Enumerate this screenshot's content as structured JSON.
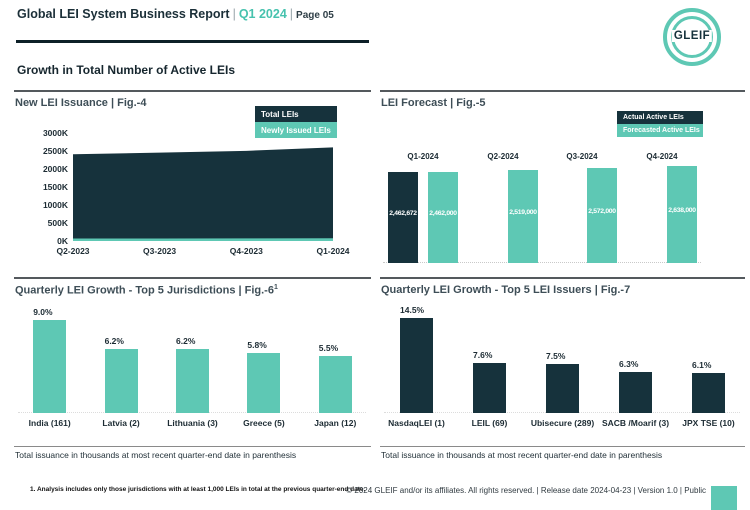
{
  "colors": {
    "teal": "#5EC8B4",
    "dark": "#16323C",
    "header_accent": "#47C2AE"
  },
  "header": {
    "title": "Global LEI System Business Report",
    "divider": "|",
    "period": "Q1 2024",
    "page_label": "Page 05",
    "logo_text": "GLEIF",
    "section_title": "Growth in Total Number of Active LEIs"
  },
  "chart_data": [
    {
      "id": "fig4",
      "type": "area",
      "title": "New LEI Issuance | Fig.-4",
      "legend": [
        {
          "label": "Total LEIs",
          "color_role": "dark"
        },
        {
          "label": "Newly Issued LEIs",
          "color_role": "teal"
        }
      ],
      "x": [
        "Q2-2023",
        "Q3-2023",
        "Q4-2023",
        "Q1-2024"
      ],
      "series": [
        {
          "name": "Total LEIs",
          "color_role": "dark",
          "values": [
            2410000,
            2455000,
            2505000,
            2600000
          ]
        },
        {
          "name": "Newly Issued LEIs",
          "color_role": "teal",
          "values": [
            70000,
            68000,
            72000,
            75000
          ]
        }
      ],
      "ylim": [
        0,
        3000000
      ],
      "yticks": [
        {
          "label": "0K",
          "value": 0
        },
        {
          "label": "500K",
          "value": 500000
        },
        {
          "label": "1000K",
          "value": 1000000
        },
        {
          "label": "1500K",
          "value": 1500000
        },
        {
          "label": "2000K",
          "value": 2000000
        },
        {
          "label": "2500K",
          "value": 2500000
        },
        {
          "label": "3000K",
          "value": 3000000
        }
      ]
    },
    {
      "id": "fig5",
      "type": "bar",
      "title": "LEI Forecast | Fig.-5",
      "legend": [
        {
          "label": "Actual Active LEIs",
          "color_role": "dark"
        },
        {
          "label": "Forecasted Active LEIs",
          "color_role": "teal"
        }
      ],
      "categories": [
        "Q1-2024",
        "Q2-2024",
        "Q3-2024",
        "Q4-2024"
      ],
      "series": [
        {
          "name": "Actual Active LEIs",
          "color_role": "dark",
          "values": [
            2462672,
            null,
            null,
            null
          ],
          "labels": [
            "2,462,672",
            "",
            "",
            ""
          ]
        },
        {
          "name": "Forecasted Active LEIs",
          "color_role": "teal",
          "values": [
            2462000,
            2519000,
            2572000,
            2638000
          ],
          "labels": [
            "2,462,000",
            "2,519,000",
            "2,572,000",
            "2,638,000"
          ]
        }
      ]
    },
    {
      "id": "fig6",
      "type": "bar",
      "title": "Quarterly LEI Growth - Top 5 Jurisdictions | Fig.-6",
      "title_superscript": "1",
      "bar_color_role": "teal",
      "categories": [
        "India (161)",
        "Latvia (2)",
        "Lithuania (3)",
        "Greece (5)",
        "Japan (12)"
      ],
      "values": [
        9.0,
        6.2,
        6.2,
        5.8,
        5.5
      ],
      "value_labels": [
        "9.0%",
        "6.2%",
        "6.2%",
        "5.8%",
        "5.5%"
      ],
      "unit": "%",
      "caption": "Total issuance in thousands at most recent quarter-end date in parenthesis"
    },
    {
      "id": "fig7",
      "type": "bar",
      "title": "Quarterly LEI Growth - Top 5 LEI Issuers | Fig.-7",
      "bar_color_role": "dark",
      "categories": [
        "NasdaqLEI (1)",
        "LEIL (69)",
        "Ubisecure (289)",
        "SACB /Moarif (3)",
        "JPX TSE (10)"
      ],
      "values": [
        14.5,
        7.6,
        7.5,
        6.3,
        6.1
      ],
      "value_labels": [
        "14.5%",
        "7.6%",
        "7.5%",
        "6.3%",
        "6.1%"
      ],
      "unit": "%",
      "caption": "Total issuance in thousands at most recent quarter-end date in parenthesis"
    }
  ],
  "footer": {
    "footnote": "1. Analysis includes only those jurisdictions with at least 1,000 LEIs in total at the previous quarter-end date.",
    "copyright": "© 2024 GLEIF and/or its affiliates. All rights reserved. | Release date 2024-04-23 | Version 1.0 | Public"
  }
}
